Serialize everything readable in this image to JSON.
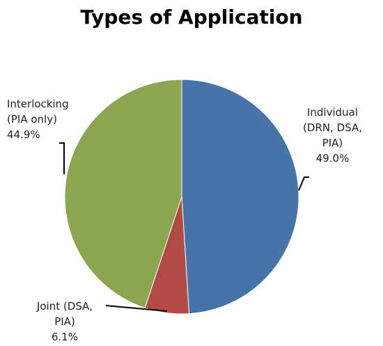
{
  "chart_data": {
    "type": "pie",
    "title": "Types of Application",
    "start_angle_deg": 0,
    "direction": "clockwise",
    "slices": [
      {
        "name": "Individual (DRN, DSA, PIA)",
        "label": "Individual\n(DRN, DSA,\nPIA)\n49.0%",
        "value": 49.0,
        "color": "#4674A9"
      },
      {
        "name": "Joint (DSA, PIA)",
        "label": "Joint (DSA,\nPIA)\n6.1%",
        "value": 6.1,
        "color": "#B24B45"
      },
      {
        "name": "Interlocking (PIA only)",
        "label": "Interlocking\n(PIA only)\n44.9%",
        "value": 44.9,
        "color": "#8CA650"
      }
    ]
  }
}
